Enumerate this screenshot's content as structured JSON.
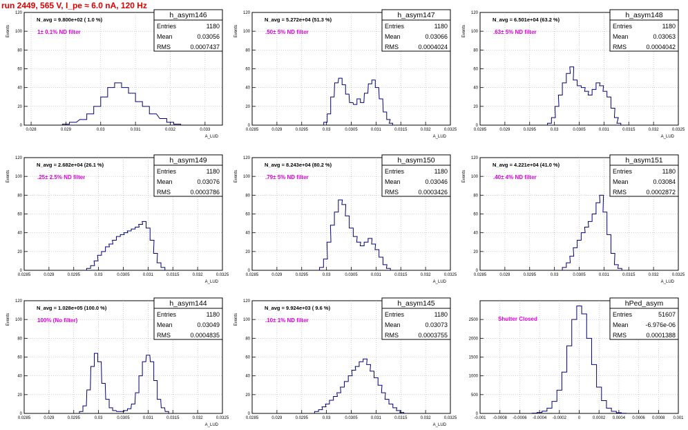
{
  "header": {
    "run_title": "run 2449,   565 V, I_pe ≈ 6.0 nA, 120 Hz"
  },
  "colors": {
    "histogram": "#00007a",
    "note": "#e000e0",
    "title": "#e00000",
    "grid": "#b0b0b0"
  },
  "chart_data": [
    {
      "type": "histogram",
      "title": "h_asym146",
      "ylabel": "Events",
      "xlabel": "A_LUD",
      "stats": {
        "entries": "1180",
        "mean": "0.03056",
        "rms": "0.0007437"
      },
      "navg": "N_avg = 9.800e+02 ( 1.0 %)",
      "note": "1± 0.1% ND filter",
      "xlim": [
        0.0278,
        0.0335
      ],
      "ylim": [
        0,
        120
      ],
      "xticks": [
        0.028,
        0.029,
        0.03,
        0.031,
        0.032,
        0.033
      ],
      "xtick_labels": [
        "0.028",
        "0.029",
        "0.03",
        "0.031",
        "0.032",
        "0.033"
      ],
      "yticks": [
        0,
        20,
        40,
        60,
        80,
        100,
        120
      ],
      "bins": [
        0.029,
        0.0292,
        0.0295,
        0.0297,
        0.0299,
        0.0301,
        0.0303,
        0.0305,
        0.0307,
        0.0309,
        0.0311,
        0.0313,
        0.0315,
        0.0318,
        0.032,
        0.0322
      ],
      "counts": [
        1,
        3,
        6,
        12,
        20,
        30,
        40,
        45,
        40,
        34,
        25,
        20,
        12,
        7,
        3,
        1
      ]
    },
    {
      "type": "histogram",
      "title": "h_asym147",
      "ylabel": "Events",
      "xlabel": "A_LUD",
      "stats": {
        "entries": "1180",
        "mean": "0.03066",
        "rms": "0.0004024"
      },
      "navg": "N_avg = 5.272e+04 (51.3 %)",
      "note": ".50± 5% ND filter",
      "xlim": [
        0.0285,
        0.0325
      ],
      "ylim": [
        0,
        120
      ],
      "xticks": [
        0.0285,
        0.029,
        0.0295,
        0.03,
        0.0305,
        0.031,
        0.0315,
        0.032,
        0.0325
      ],
      "xtick_labels": [
        "0.0285",
        "0.029",
        "0.0295",
        "0.03",
        "0.0305",
        "0.031",
        "0.0315",
        "0.032",
        "0.0325"
      ],
      "yticks": [
        0,
        20,
        40,
        60,
        80,
        100,
        120
      ],
      "bins": [
        0.02998,
        0.03005,
        0.03012,
        0.0302,
        0.03028,
        0.03035,
        0.03042,
        0.0305,
        0.03058,
        0.03065,
        0.03072,
        0.0308,
        0.03088,
        0.03095,
        0.03102,
        0.0311,
        0.03118,
        0.03125,
        0.0313
      ],
      "counts": [
        3,
        12,
        30,
        45,
        50,
        43,
        33,
        24,
        22,
        28,
        24,
        34,
        44,
        48,
        40,
        28,
        14,
        6,
        2
      ]
    },
    {
      "type": "histogram",
      "title": "h_asym148",
      "ylabel": "Events",
      "xlabel": "A_LUD",
      "stats": {
        "entries": "1180",
        "mean": "0.03063",
        "rms": "0.0004042"
      },
      "navg": "N_avg = 6.501e+04 (63.2 %)",
      "note": ".63± 5% ND filter",
      "xlim": [
        0.0285,
        0.0325
      ],
      "ylim": [
        0,
        120
      ],
      "xticks": [
        0.0285,
        0.029,
        0.0295,
        0.03,
        0.0305,
        0.031,
        0.0315,
        0.032,
        0.0325
      ],
      "xtick_labels": [
        "0.0285",
        "0.029",
        "0.0295",
        "0.03",
        "0.0305",
        "0.031",
        "0.0315",
        "0.032",
        "0.0325"
      ],
      "yticks": [
        0,
        20,
        40,
        60,
        80,
        100,
        120
      ],
      "bins": [
        0.0299,
        0.02998,
        0.03005,
        0.03012,
        0.0302,
        0.03028,
        0.03035,
        0.03042,
        0.0305,
        0.03058,
        0.03065,
        0.03072,
        0.0308,
        0.03088,
        0.03095,
        0.03102,
        0.0311,
        0.03118,
        0.03125,
        0.0313
      ],
      "counts": [
        2,
        8,
        20,
        32,
        45,
        55,
        62,
        48,
        42,
        40,
        36,
        32,
        38,
        45,
        42,
        36,
        30,
        18,
        8,
        2
      ]
    },
    {
      "type": "histogram",
      "title": "h_asym149",
      "ylabel": "Events",
      "xlabel": "A_LUD",
      "stats": {
        "entries": "1180",
        "mean": "0.03076",
        "rms": "0.0003786"
      },
      "navg": "N_avg = 2.682e+04 (26.1 %)",
      "note": ".25± 2.5% ND filter",
      "xlim": [
        0.0285,
        0.0325
      ],
      "ylim": [
        0,
        120
      ],
      "xticks": [
        0.0285,
        0.029,
        0.0295,
        0.03,
        0.0305,
        0.031,
        0.0315,
        0.032,
        0.0325
      ],
      "xtick_labels": [
        "0.0285",
        "0.029",
        "0.0295",
        "0.03",
        "0.0305",
        "0.031",
        "0.0315",
        "0.032",
        "0.0325"
      ],
      "yticks": [
        0,
        20,
        40,
        60,
        80,
        100,
        120
      ],
      "bins": [
        0.0298,
        0.02988,
        0.02995,
        0.03002,
        0.0301,
        0.03018,
        0.03025,
        0.03032,
        0.0304,
        0.03048,
        0.03055,
        0.03062,
        0.0307,
        0.03078,
        0.03085,
        0.03092,
        0.031,
        0.03108,
        0.03115,
        0.03122,
        0.0313
      ],
      "counts": [
        2,
        5,
        10,
        16,
        20,
        25,
        28,
        32,
        36,
        38,
        40,
        42,
        44,
        46,
        49,
        52,
        45,
        32,
        18,
        8,
        3
      ]
    },
    {
      "type": "histogram",
      "title": "h_asym150",
      "ylabel": "Events",
      "xlabel": "A_LUD",
      "stats": {
        "entries": "1180",
        "mean": "0.03046",
        "rms": "0.0003426"
      },
      "navg": "N_avg = 8.243e+04 (80.2 %)",
      "note": ".79± 5% ND filter",
      "xlim": [
        0.0285,
        0.0325
      ],
      "ylim": [
        0,
        120
      ],
      "xticks": [
        0.0285,
        0.029,
        0.0295,
        0.03,
        0.0305,
        0.031,
        0.0315,
        0.032,
        0.0325
      ],
      "xtick_labels": [
        "0.0285",
        "0.029",
        "0.0295",
        "0.03",
        "0.0305",
        "0.031",
        "0.0315",
        "0.032",
        "0.0325"
      ],
      "yticks": [
        0,
        20,
        40,
        60,
        80,
        100,
        120
      ],
      "bins": [
        0.0299,
        0.02998,
        0.03005,
        0.03012,
        0.0302,
        0.03028,
        0.03035,
        0.03042,
        0.0305,
        0.03058,
        0.03065,
        0.03072,
        0.0308,
        0.03088,
        0.03095,
        0.03102,
        0.0311,
        0.03118,
        0.03125
      ],
      "counts": [
        3,
        12,
        30,
        48,
        62,
        75,
        70,
        58,
        45,
        36,
        30,
        26,
        30,
        34,
        28,
        22,
        14,
        6,
        2
      ]
    },
    {
      "type": "histogram",
      "title": "h_asym151",
      "ylabel": "Events",
      "xlabel": "A_LUD",
      "stats": {
        "entries": "1180",
        "mean": "0.03084",
        "rms": "0.0002872"
      },
      "navg": "N_avg = 4.221e+04 (41.0 %)",
      "note": ".40± 4% ND filter",
      "xlim": [
        0.0285,
        0.0325
      ],
      "ylim": [
        0,
        120
      ],
      "xticks": [
        0.0285,
        0.029,
        0.0295,
        0.03,
        0.0305,
        0.031,
        0.0315,
        0.032,
        0.0325
      ],
      "xtick_labels": [
        "0.0285",
        "0.029",
        "0.0295",
        "0.03",
        "0.0305",
        "0.031",
        "0.0315",
        "0.032",
        "0.0325"
      ],
      "yticks": [
        0,
        20,
        40,
        60,
        80,
        100,
        120
      ],
      "bins": [
        0.0302,
        0.03028,
        0.03035,
        0.03042,
        0.0305,
        0.03058,
        0.03065,
        0.03072,
        0.0308,
        0.03088,
        0.03095,
        0.03102,
        0.0311,
        0.03118,
        0.03125,
        0.03132
      ],
      "counts": [
        3,
        8,
        15,
        24,
        32,
        40,
        46,
        52,
        60,
        72,
        80,
        62,
        38,
        18,
        6,
        2
      ]
    },
    {
      "type": "histogram",
      "title": "h_asym144",
      "ylabel": "Events",
      "xlabel": "A_LUD",
      "stats": {
        "entries": "1180",
        "mean": "0.03049",
        "rms": "0.0004835"
      },
      "navg": "N_avg = 1.028e+05 (100.0 %)",
      "note": "100% (No filter)",
      "xlim": [
        0.0285,
        0.0325
      ],
      "ylim": [
        0,
        120
      ],
      "xticks": [
        0.0285,
        0.029,
        0.0295,
        0.03,
        0.0305,
        0.031,
        0.0315,
        0.032,
        0.0325
      ],
      "xtick_labels": [
        "0.0285",
        "0.029",
        "0.0295",
        "0.03",
        "0.0305",
        "0.031",
        "0.0315",
        "0.032",
        "0.0325"
      ],
      "yticks": [
        0,
        20,
        40,
        60,
        80,
        100,
        120
      ],
      "bins": [
        0.02965,
        0.02972,
        0.0298,
        0.02988,
        0.02995,
        0.03002,
        0.0301,
        0.03018,
        0.03025,
        0.03032,
        0.0304,
        0.03048,
        0.03055,
        0.03062,
        0.0307,
        0.03078,
        0.03085,
        0.03092,
        0.031,
        0.03108,
        0.03115,
        0.03122,
        0.0313,
        0.03138
      ],
      "counts": [
        2,
        8,
        25,
        50,
        64,
        55,
        32,
        15,
        6,
        3,
        2,
        2,
        3,
        5,
        10,
        22,
        40,
        55,
        62,
        55,
        35,
        15,
        6,
        2
      ]
    },
    {
      "type": "histogram",
      "title": "h_asym145",
      "ylabel": "Events",
      "xlabel": "A_LUD",
      "stats": {
        "entries": "1180",
        "mean": "0.03073",
        "rms": "0.0003755"
      },
      "navg": "N_avg = 9.924e+03 ( 9.6 %)",
      "note": ".10± 1% ND filter",
      "xlim": [
        0.0285,
        0.0325
      ],
      "ylim": [
        0,
        120
      ],
      "xticks": [
        0.0285,
        0.029,
        0.0295,
        0.03,
        0.0305,
        0.031,
        0.0315,
        0.032,
        0.0325
      ],
      "xtick_labels": [
        "0.0285",
        "0.029",
        "0.0295",
        "0.03",
        "0.0305",
        "0.031",
        "0.0315",
        "0.032",
        "0.0325"
      ],
      "yticks": [
        0,
        20,
        40,
        60,
        80,
        100,
        120
      ],
      "bins": [
        0.0298,
        0.02988,
        0.02995,
        0.03002,
        0.0301,
        0.03018,
        0.03025,
        0.03032,
        0.0304,
        0.03048,
        0.03055,
        0.03062,
        0.0307,
        0.03078,
        0.03085,
        0.03092,
        0.031,
        0.03108,
        0.03115,
        0.03122,
        0.0313,
        0.03138,
        0.03145,
        0.03152
      ],
      "counts": [
        2,
        4,
        7,
        10,
        14,
        18,
        22,
        28,
        34,
        40,
        46,
        50,
        55,
        58,
        52,
        45,
        38,
        30,
        22,
        15,
        10,
        6,
        3,
        1
      ]
    },
    {
      "type": "histogram",
      "title": "hPed_asym",
      "ylabel": "",
      "xlabel": "",
      "stats": {
        "entries": "51607",
        "mean": "-6.976e-06",
        "rms": "0.0001388"
      },
      "navg": "",
      "note": "Shutter Closed",
      "xlim": [
        -0.001,
        0.001
      ],
      "ylim": [
        0,
        3000
      ],
      "xticks": [
        -0.001,
        -0.0008,
        -0.0006,
        -0.0004,
        -0.0002,
        0,
        0.0002,
        0.0004,
        0.0006,
        0.0008,
        0.001
      ],
      "xtick_labels": [
        "-0.001",
        "-0.0008",
        "-0.0006",
        "-0.0004",
        "-0.0002",
        "0",
        "0.0002",
        "0.0004",
        "0.0006",
        "0.0008",
        "0.001"
      ],
      "yticks": [
        0,
        500,
        1000,
        1500,
        2000,
        2500
      ],
      "bins": [
        -0.00045,
        -0.0004,
        -0.00035,
        -0.0003,
        -0.00025,
        -0.0002,
        -0.00015,
        -0.0001,
        -5e-05,
        0,
        5e-05,
        0.0001,
        0.00015,
        0.0002,
        0.00025,
        0.0003,
        0.00035,
        0.0004,
        0.00045
      ],
      "counts": [
        8,
        25,
        60,
        140,
        320,
        620,
        1100,
        1800,
        2500,
        2860,
        2650,
        2000,
        1300,
        700,
        340,
        140,
        55,
        18,
        5
      ]
    }
  ]
}
